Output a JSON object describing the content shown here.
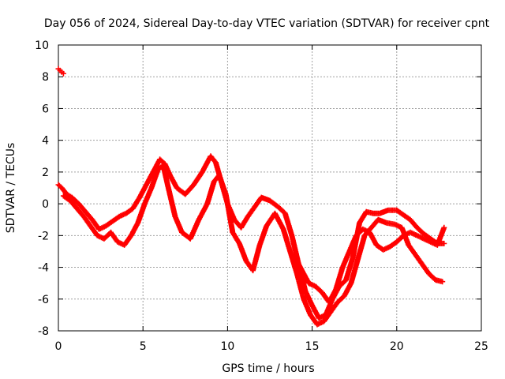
{
  "chart_data": {
    "type": "scatter",
    "title": "Day 056 of 2024, Sidereal Day-to-day VTEC variation (SDTVAR) for receiver cpnt",
    "xlabel": "GPS time / hours",
    "ylabel": "SDTVAR / TECUs",
    "xlim": [
      0,
      25
    ],
    "ylim": [
      -8,
      10
    ],
    "x_ticks": [
      0,
      5,
      10,
      15,
      20,
      25
    ],
    "y_ticks": [
      -8,
      -6,
      -4,
      -2,
      0,
      2,
      4,
      6,
      8,
      10
    ],
    "grid": true,
    "legend": "none",
    "marker": "+",
    "color": "#ff0000",
    "series": [
      {
        "name": "track-a",
        "x": [
          0.0,
          0.2,
          0.5,
          0.8,
          1.2,
          1.6,
          2.0,
          2.4,
          2.8,
          3.2,
          3.6,
          4.0,
          4.4,
          4.8,
          5.2,
          5.6,
          6.0,
          6.3,
          6.6,
          7.0,
          7.5,
          8.0,
          8.5,
          9.0,
          9.3,
          9.6,
          10.0,
          10.4,
          10.8,
          11.2,
          11.6,
          12.0,
          12.5,
          13.0,
          13.4,
          13.8,
          14.2,
          14.6,
          15.0,
          15.4,
          15.8,
          16.2,
          16.6,
          17.0,
          17.4,
          17.8,
          18.2,
          18.6,
          19.0,
          19.5,
          20.0,
          20.4,
          20.8,
          21.2,
          21.6,
          22.0,
          22.4,
          22.8
        ],
        "y": [
          1.2,
          1.0,
          0.6,
          0.4,
          0.0,
          -0.5,
          -1.0,
          -1.6,
          -1.4,
          -1.1,
          -0.8,
          -0.6,
          -0.3,
          0.4,
          1.2,
          2.0,
          2.8,
          2.5,
          1.8,
          1.0,
          0.6,
          1.2,
          2.0,
          3.0,
          2.6,
          1.5,
          0.0,
          -1.0,
          -1.5,
          -0.8,
          -0.2,
          0.4,
          0.2,
          -0.2,
          -0.6,
          -2.0,
          -3.8,
          -5.5,
          -6.4,
          -7.2,
          -7.0,
          -6.0,
          -5.2,
          -4.8,
          -3.4,
          -1.2,
          -0.5,
          -0.6,
          -0.6,
          -0.4,
          -0.4,
          -0.7,
          -1.0,
          -1.5,
          -1.9,
          -2.2,
          -2.5,
          -2.5
        ]
      },
      {
        "name": "track-b",
        "x": [
          0.3,
          0.7,
          1.1,
          1.5,
          1.9,
          2.3,
          2.7,
          3.1,
          3.5,
          3.9,
          4.3,
          4.7,
          5.1,
          5.5,
          5.9,
          6.2,
          6.5,
          6.9,
          7.3,
          7.8,
          8.3,
          8.8,
          9.2,
          9.5,
          9.9,
          10.3,
          10.7,
          11.1,
          11.5,
          11.9,
          12.3,
          12.8,
          13.3,
          13.7,
          14.1,
          14.5,
          14.9,
          15.3,
          15.7,
          16.1,
          16.5,
          16.9,
          17.3,
          17.7,
          18.1,
          18.5,
          18.9,
          19.4,
          19.9,
          20.3,
          20.7,
          21.1,
          21.5,
          21.9,
          22.3,
          22.7
        ],
        "y": [
          0.5,
          0.2,
          -0.3,
          -0.8,
          -1.4,
          -2.0,
          -2.2,
          -1.8,
          -2.4,
          -2.6,
          -2.0,
          -1.2,
          0.0,
          1.0,
          2.2,
          2.4,
          1.0,
          -0.8,
          -1.8,
          -2.2,
          -1.0,
          0.0,
          1.4,
          1.8,
          0.6,
          -1.8,
          -2.5,
          -3.6,
          -4.2,
          -2.6,
          -1.4,
          -0.6,
          -1.6,
          -3.0,
          -4.4,
          -6.0,
          -7.0,
          -7.6,
          -7.4,
          -6.8,
          -6.2,
          -5.8,
          -5.0,
          -3.5,
          -2.0,
          -1.5,
          -1.0,
          -1.2,
          -1.3,
          -1.5,
          -2.6,
          -3.2,
          -3.8,
          -4.4,
          -4.8,
          -4.9
        ]
      },
      {
        "name": "track-c",
        "x": [
          0.0,
          0.1,
          0.2,
          0.3
        ],
        "y": [
          8.5,
          8.4,
          8.3,
          8.2
        ]
      },
      {
        "name": "track-d",
        "x": [
          14.0,
          14.4,
          14.8,
          15.2,
          15.6,
          16.0,
          16.4,
          16.8,
          17.2,
          17.6,
          18.0,
          18.4,
          18.8,
          19.2,
          19.6,
          20.0,
          20.4,
          20.8,
          21.2,
          21.6,
          22.0,
          22.4,
          22.8
        ],
        "y": [
          -3.4,
          -4.2,
          -5.0,
          -5.2,
          -5.6,
          -6.2,
          -5.4,
          -4.0,
          -3.0,
          -2.0,
          -1.6,
          -1.8,
          -2.6,
          -2.9,
          -2.7,
          -2.4,
          -2.0,
          -1.8,
          -2.0,
          -2.2,
          -2.4,
          -2.6,
          -1.5
        ]
      }
    ]
  }
}
